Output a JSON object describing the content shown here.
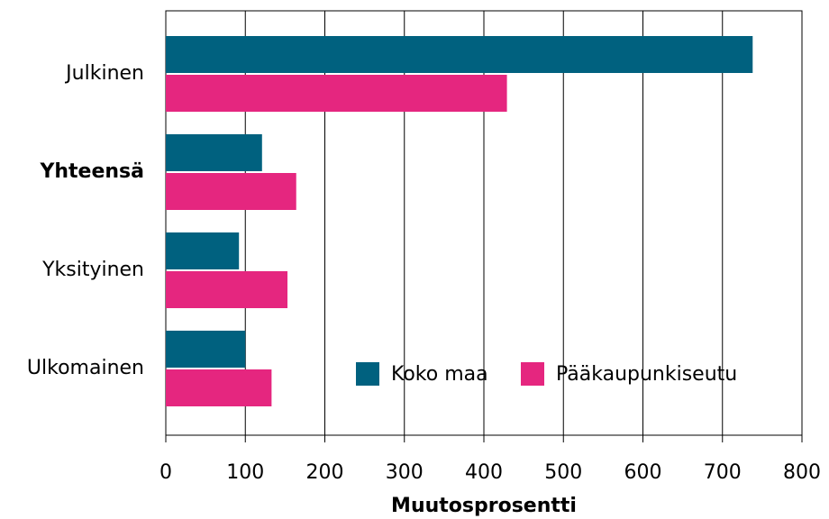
{
  "chart_data": {
    "type": "bar",
    "orientation": "horizontal",
    "xlabel": "Muutosprosentti",
    "categories": [
      "Julkinen",
      "Yhteensä",
      "Yksityinen",
      "Ulkomainen"
    ],
    "series": [
      {
        "name": "Koko maa",
        "color": "#00617f",
        "values": [
          738,
          121,
          92,
          100
        ]
      },
      {
        "name": "Pääkaupunkiseutu",
        "color": "#e5267f",
        "values": [
          429,
          164,
          153,
          133
        ]
      }
    ],
    "xlim": [
      0,
      800
    ],
    "xticks": [
      0,
      100,
      200,
      300,
      400,
      500,
      600,
      700,
      800
    ],
    "grid": true,
    "legend": "lower right"
  }
}
